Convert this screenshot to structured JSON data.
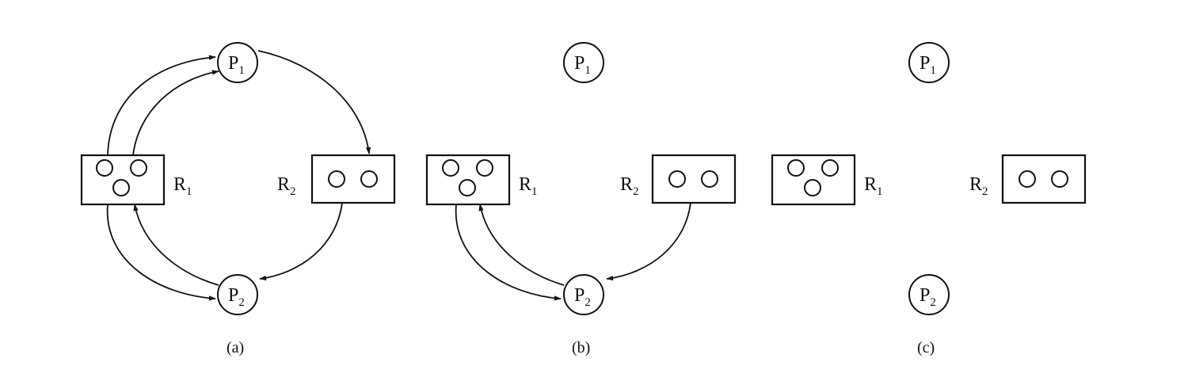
{
  "panels": [
    {
      "caption": "(a)",
      "processes": [
        {
          "letter": "P",
          "index": "1"
        },
        {
          "letter": "P",
          "index": "2"
        }
      ],
      "resources": [
        {
          "letter": "R",
          "index": "1",
          "units": 3
        },
        {
          "letter": "R",
          "index": "2",
          "units": 2
        }
      ]
    },
    {
      "caption": "(b)",
      "processes": [
        {
          "letter": "P",
          "index": "1"
        },
        {
          "letter": "P",
          "index": "2"
        }
      ],
      "resources": [
        {
          "letter": "R",
          "index": "1",
          "units": 3
        },
        {
          "letter": "R",
          "index": "2",
          "units": 2
        }
      ]
    },
    {
      "caption": "(c)",
      "processes": [
        {
          "letter": "P",
          "index": "1"
        },
        {
          "letter": "P",
          "index": "2"
        }
      ],
      "resources": [
        {
          "letter": "R",
          "index": "1",
          "units": 3
        },
        {
          "letter": "R",
          "index": "2",
          "units": 2
        }
      ]
    }
  ]
}
